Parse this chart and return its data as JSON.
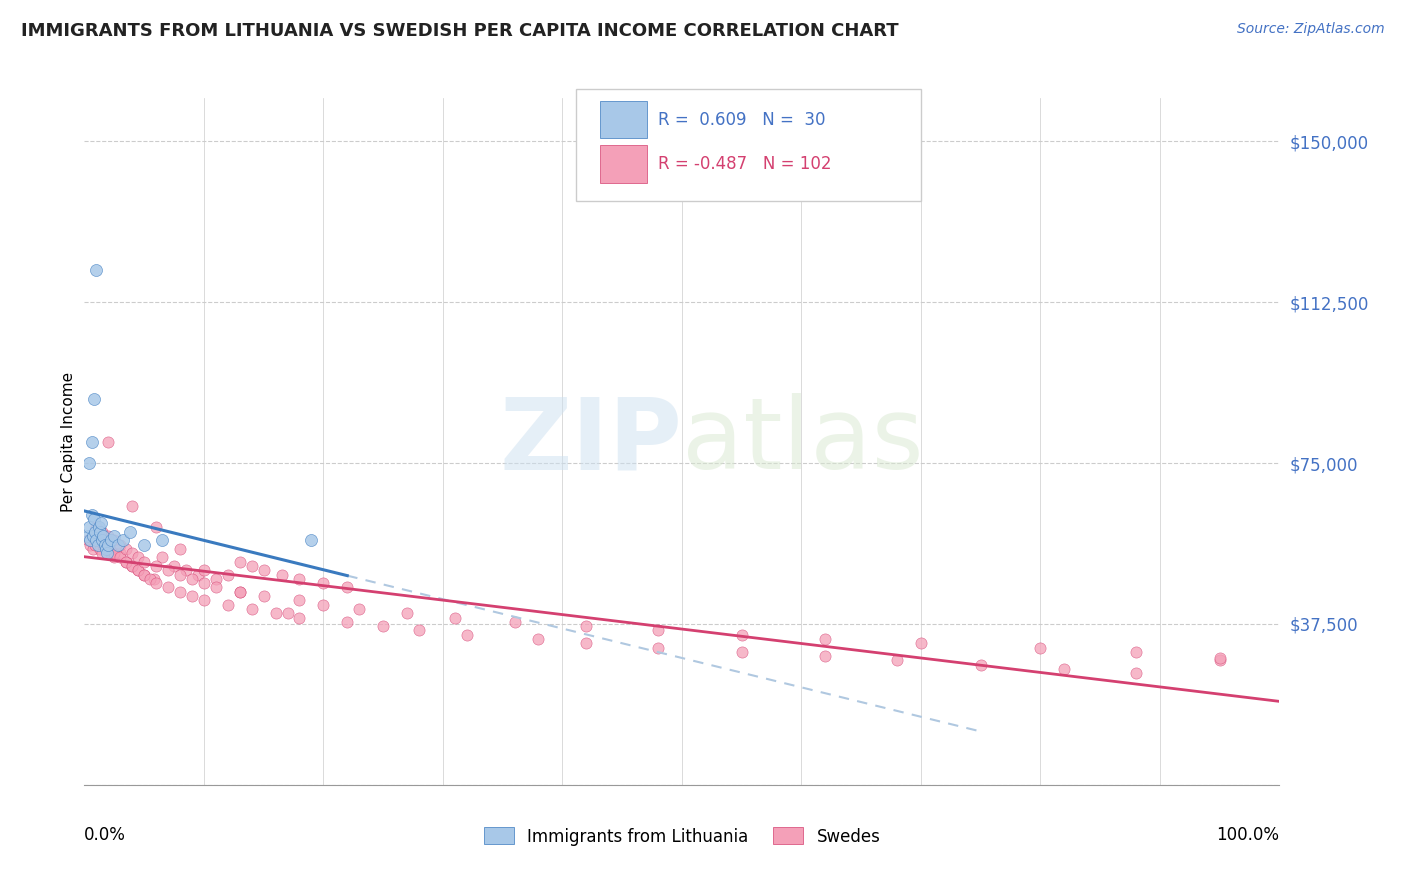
{
  "title": "IMMIGRANTS FROM LITHUANIA VS SWEDISH PER CAPITA INCOME CORRELATION CHART",
  "source": "Source: ZipAtlas.com",
  "ylabel": "Per Capita Income",
  "ymin": 0,
  "ymax": 160000,
  "xmin": 0.0,
  "xmax": 1.0,
  "color_blue": "#a8c8e8",
  "color_pink": "#f4a0b8",
  "color_blue_line": "#3a7abf",
  "color_pink_line": "#d44070",
  "watermark_zip": "ZIP",
  "watermark_atlas": "atlas",
  "blue_scatter_x": [
    0.003,
    0.004,
    0.005,
    0.006,
    0.007,
    0.008,
    0.009,
    0.01,
    0.011,
    0.012,
    0.013,
    0.014,
    0.015,
    0.016,
    0.017,
    0.018,
    0.019,
    0.02,
    0.022,
    0.025,
    0.028,
    0.032,
    0.038,
    0.05,
    0.065,
    0.004,
    0.006,
    0.008,
    0.01,
    0.19
  ],
  "blue_scatter_y": [
    58000,
    60000,
    57000,
    63000,
    58000,
    62000,
    59000,
    57000,
    56000,
    60000,
    59000,
    61000,
    57000,
    58000,
    56000,
    55000,
    54000,
    56000,
    57000,
    58000,
    56000,
    57000,
    59000,
    56000,
    57000,
    75000,
    80000,
    90000,
    120000,
    57000
  ],
  "pink_scatter_x": [
    0.003,
    0.005,
    0.007,
    0.009,
    0.011,
    0.013,
    0.015,
    0.017,
    0.019,
    0.022,
    0.025,
    0.03,
    0.035,
    0.04,
    0.045,
    0.05,
    0.058,
    0.065,
    0.075,
    0.085,
    0.095,
    0.11,
    0.12,
    0.13,
    0.14,
    0.15,
    0.165,
    0.18,
    0.2,
    0.22,
    0.008,
    0.012,
    0.016,
    0.02,
    0.025,
    0.03,
    0.035,
    0.04,
    0.045,
    0.05,
    0.055,
    0.06,
    0.07,
    0.08,
    0.09,
    0.1,
    0.12,
    0.14,
    0.16,
    0.18,
    0.22,
    0.25,
    0.28,
    0.32,
    0.38,
    0.42,
    0.48,
    0.55,
    0.62,
    0.68,
    0.75,
    0.82,
    0.88,
    0.95,
    0.01,
    0.015,
    0.02,
    0.025,
    0.03,
    0.035,
    0.04,
    0.045,
    0.05,
    0.06,
    0.07,
    0.08,
    0.09,
    0.1,
    0.11,
    0.13,
    0.15,
    0.18,
    0.2,
    0.23,
    0.27,
    0.31,
    0.36,
    0.42,
    0.48,
    0.55,
    0.62,
    0.7,
    0.8,
    0.88,
    0.95,
    0.02,
    0.04,
    0.06,
    0.08,
    0.1,
    0.13,
    0.17
  ],
  "pink_scatter_y": [
    57000,
    56000,
    55000,
    56000,
    57000,
    55000,
    54000,
    56000,
    55000,
    54000,
    53000,
    54000,
    52000,
    51000,
    50000,
    49000,
    48000,
    53000,
    51000,
    50000,
    49000,
    48000,
    49000,
    52000,
    51000,
    50000,
    49000,
    48000,
    47000,
    46000,
    58000,
    57000,
    56000,
    55000,
    54000,
    53000,
    52000,
    51000,
    50000,
    49000,
    48000,
    47000,
    46000,
    45000,
    44000,
    43000,
    42000,
    41000,
    40000,
    39000,
    38000,
    37000,
    36000,
    35000,
    34000,
    33000,
    32000,
    31000,
    30000,
    29000,
    28000,
    27000,
    26000,
    29000,
    60000,
    59000,
    58000,
    57000,
    56000,
    55000,
    54000,
    53000,
    52000,
    51000,
    50000,
    49000,
    48000,
    47000,
    46000,
    45000,
    44000,
    43000,
    42000,
    41000,
    40000,
    39000,
    38000,
    37000,
    36000,
    35000,
    34000,
    33000,
    32000,
    31000,
    29500,
    80000,
    65000,
    60000,
    55000,
    50000,
    45000,
    40000
  ]
}
